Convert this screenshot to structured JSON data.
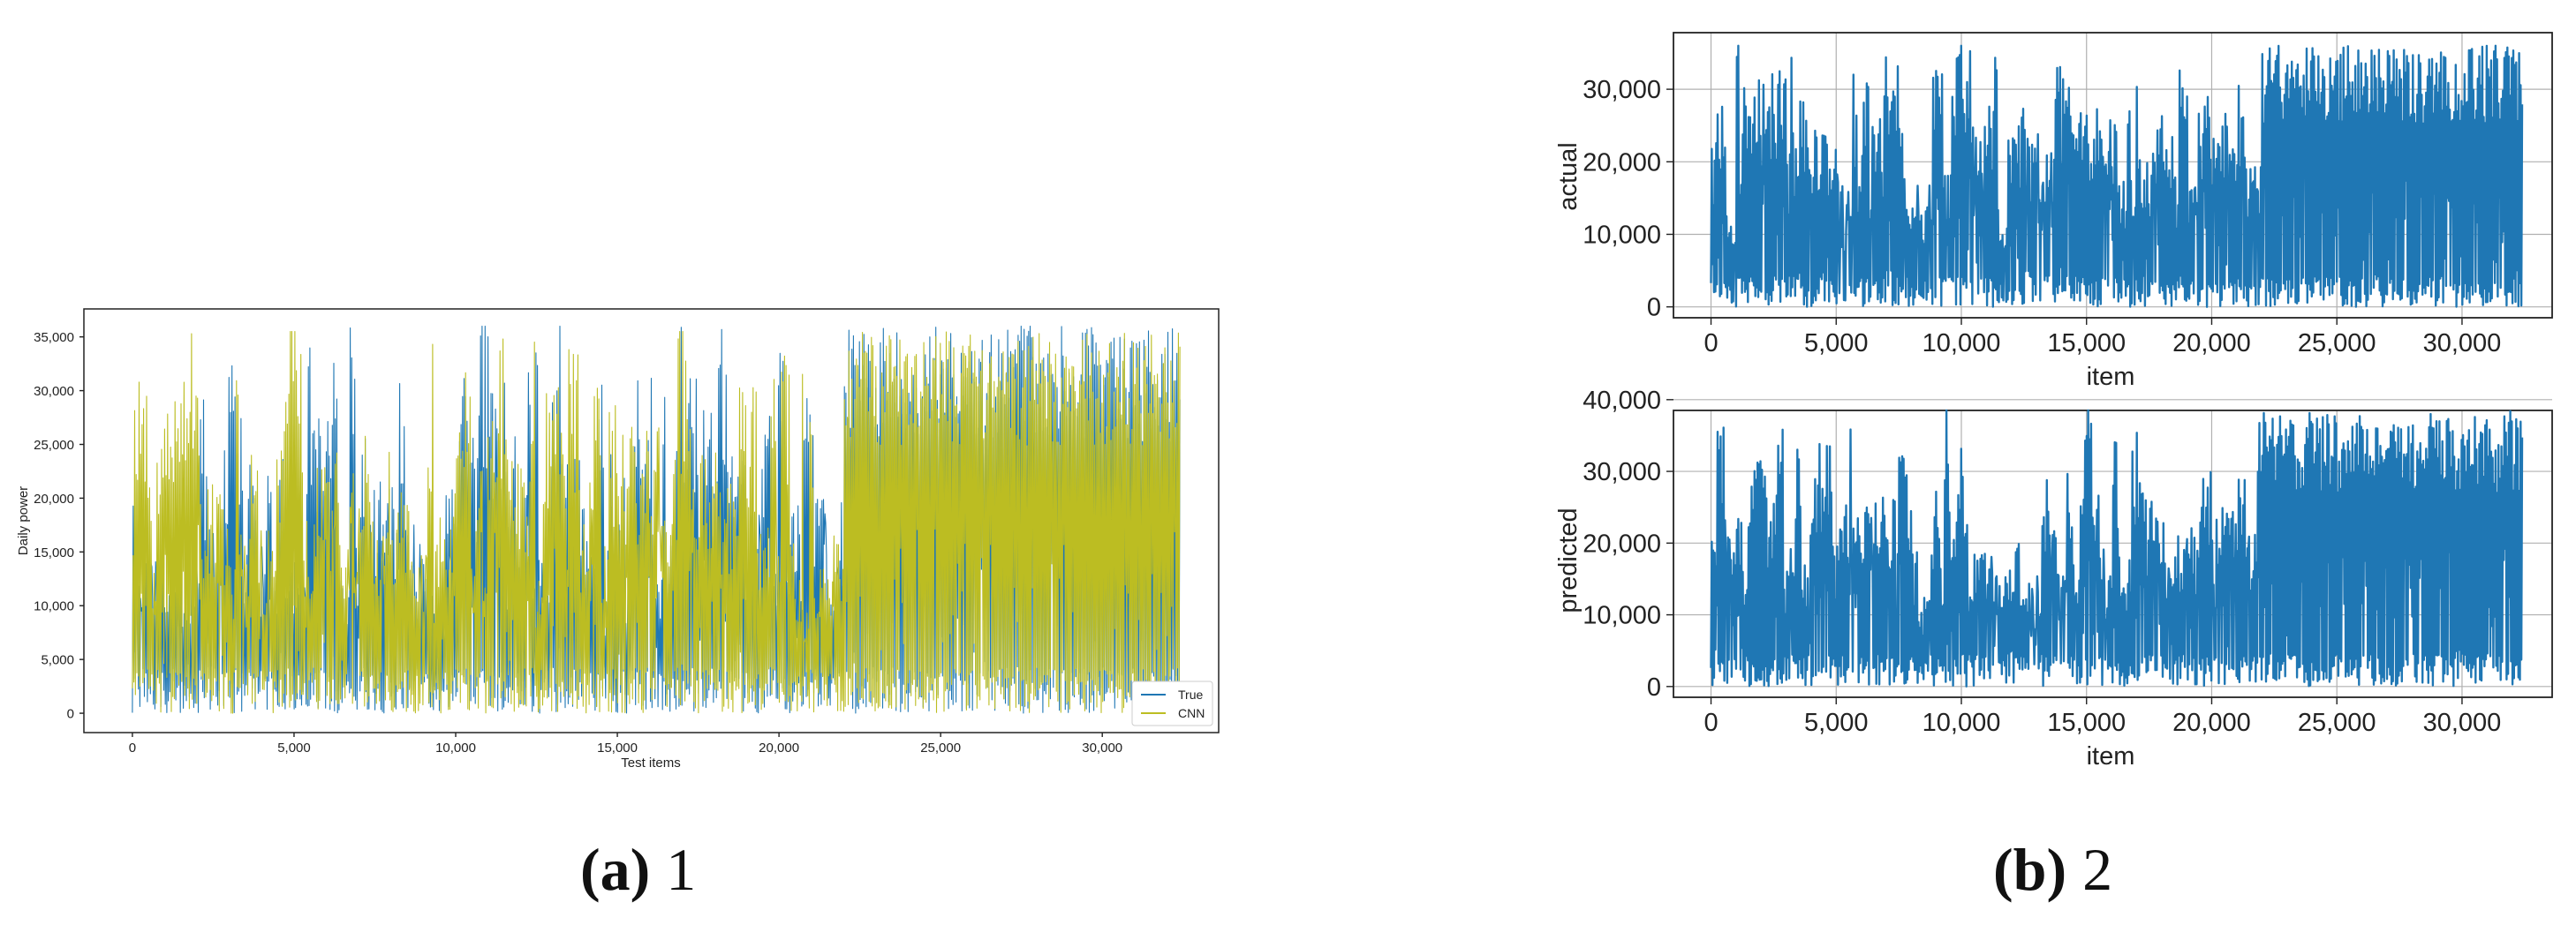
{
  "colors": {
    "true_series": "#1f77b4",
    "cnn_series": "#bcbd22",
    "grid": "#b0b0b0",
    "axis": "#222222"
  },
  "captions": {
    "a": {
      "letter": "(a)",
      "text": "1"
    },
    "b": {
      "letter": "(b)",
      "text": "2"
    }
  },
  "chart_data": [
    {
      "id": "panel-a",
      "type": "line",
      "xlabel": "Test items",
      "ylabel": "Daily power",
      "xlim": [
        -1500,
        33600
      ],
      "ylim": [
        -1800,
        37600
      ],
      "xticks": [
        0,
        5000,
        10000,
        15000,
        20000,
        25000,
        30000
      ],
      "xtick_labels": [
        "0",
        "5,000",
        "10,000",
        "15,000",
        "20,000",
        "25,000",
        "30,000"
      ],
      "yticks": [
        0,
        5000,
        10000,
        15000,
        20000,
        25000,
        30000,
        35000
      ],
      "ytick_labels": [
        "0",
        "5,000",
        "10,000",
        "15,000",
        "20,000",
        "25,000",
        "30,000",
        "35,000"
      ],
      "grid": false,
      "legend": {
        "position": "lower-right",
        "entries": [
          "True",
          "CNN"
        ]
      },
      "series": [
        {
          "name": "True",
          "color": "#1f77b4",
          "approx_points": 32400,
          "x_range": [
            0,
            32400
          ],
          "y_range": [
            0,
            36000
          ]
        },
        {
          "name": "CNN",
          "color": "#bcbd22",
          "approx_points": 32400,
          "x_range": [
            0,
            32400
          ],
          "y_range": [
            0,
            35500
          ]
        }
      ]
    },
    {
      "id": "panel-b-top",
      "type": "line",
      "xlabel": "item",
      "ylabel": "actual",
      "xlim": [
        -1500,
        33600
      ],
      "ylim": [
        -1500,
        37800
      ],
      "xticks": [
        0,
        5000,
        10000,
        15000,
        20000,
        25000,
        30000
      ],
      "xtick_labels": [
        "0",
        "5,000",
        "10,000",
        "15,000",
        "20,000",
        "25,000",
        "30,000"
      ],
      "yticks": [
        0,
        10000,
        20000,
        30000
      ],
      "ytick_labels": [
        "0",
        "10,000",
        "20,000",
        "30,000"
      ],
      "grid": true,
      "series": [
        {
          "color": "#1f77b4",
          "approx_points": 32400,
          "x_range": [
            0,
            32400
          ],
          "y_range": [
            0,
            36000
          ]
        }
      ]
    },
    {
      "id": "panel-b-bottom",
      "type": "line",
      "xlabel": "item",
      "ylabel": "predicted",
      "xlim": [
        -1500,
        33600
      ],
      "ylim": [
        -1500,
        38500
      ],
      "xticks": [
        0,
        5000,
        10000,
        15000,
        20000,
        25000,
        30000
      ],
      "xtick_labels": [
        "0",
        "5,000",
        "10,000",
        "15,000",
        "20,000",
        "25,000",
        "30,000"
      ],
      "yticks": [
        0,
        10000,
        20000,
        30000,
        40000
      ],
      "ytick_labels": [
        "0",
        "10,000",
        "20,000",
        "30,000",
        "40,000"
      ],
      "grid": true,
      "series": [
        {
          "color": "#1f77b4",
          "approx_points": 32400,
          "x_range": [
            0,
            32400
          ],
          "y_range": [
            0,
            38500
          ]
        }
      ]
    }
  ]
}
